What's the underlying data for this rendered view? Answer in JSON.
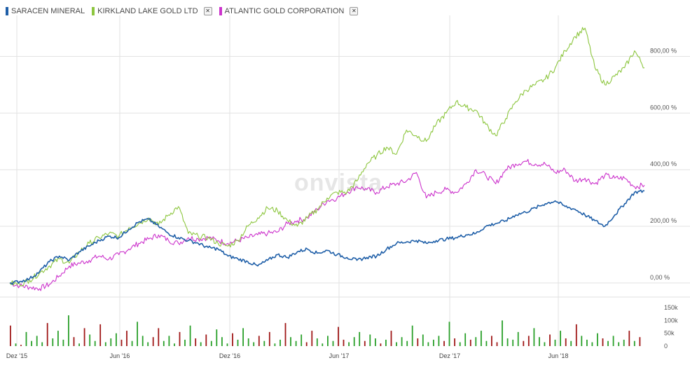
{
  "legend": [
    {
      "name": "SARACEN MINERAL",
      "color": "#1f5fa8",
      "removable": false
    },
    {
      "name": "KIRKLAND LAKE GOLD LTD",
      "color": "#8dc63f",
      "removable": true
    },
    {
      "name": "ATLANTIC GOLD CORPORATION",
      "color": "#cc33cc",
      "removable": true
    }
  ],
  "remove_glyph": "✕",
  "watermark": "onvista",
  "chart_data": [
    {
      "type": "line",
      "x_tick_labels": [
        "Dez '15",
        "Jun '16",
        "Dez '16",
        "Jun '17",
        "Dez '17",
        "Jun '18"
      ],
      "y_tick_labels": [
        "0,00 %",
        "200,00 %",
        "400,00 %",
        "600,00 %",
        "800,00 %"
      ],
      "y_ticks": [
        0,
        200,
        400,
        600,
        800
      ],
      "ylim": [
        -25,
        920
      ],
      "x_range_months": [
        0,
        32
      ],
      "grid": true,
      "legend_position": "top-left",
      "series": [
        {
          "name": "SARACEN MINERAL",
          "color": "#1f5fa8",
          "points": [
            [
              0,
              0
            ],
            [
              0.5,
              5
            ],
            [
              1,
              15
            ],
            [
              1.5,
              40
            ],
            [
              2,
              75
            ],
            [
              2.5,
              95
            ],
            [
              3,
              80
            ],
            [
              3.5,
              110
            ],
            [
              4,
              130
            ],
            [
              4.5,
              150
            ],
            [
              5,
              165
            ],
            [
              5.5,
              160
            ],
            [
              6,
              190
            ],
            [
              6.5,
              215
            ],
            [
              7,
              225
            ],
            [
              7.5,
              200
            ],
            [
              8,
              175
            ],
            [
              8.5,
              160
            ],
            [
              9,
              150
            ],
            [
              9.5,
              140
            ],
            [
              10,
              125
            ],
            [
              10.5,
              120
            ],
            [
              11,
              95
            ],
            [
              11.5,
              85
            ],
            [
              12,
              75
            ],
            [
              12.5,
              60
            ],
            [
              13,
              80
            ],
            [
              13.5,
              100
            ],
            [
              14,
              90
            ],
            [
              14.5,
              110
            ],
            [
              15,
              120
            ],
            [
              15.5,
              105
            ],
            [
              16,
              115
            ],
            [
              16.5,
              100
            ],
            [
              17,
              90
            ],
            [
              17.5,
              80
            ],
            [
              18,
              90
            ],
            [
              18.5,
              95
            ],
            [
              19,
              120
            ],
            [
              19.5,
              140
            ],
            [
              20,
              145
            ],
            [
              20.5,
              150
            ],
            [
              21,
              140
            ],
            [
              21.5,
              150
            ],
            [
              22,
              155
            ],
            [
              22.5,
              160
            ],
            [
              23,
              170
            ],
            [
              23.5,
              175
            ],
            [
              24,
              200
            ],
            [
              24.5,
              210
            ],
            [
              25,
              220
            ],
            [
              25.5,
              240
            ],
            [
              26,
              250
            ],
            [
              26.5,
              265
            ],
            [
              27,
              280
            ],
            [
              27.5,
              290
            ],
            [
              28,
              270
            ],
            [
              28.5,
              260
            ],
            [
              29,
              240
            ],
            [
              29.5,
              220
            ],
            [
              30,
              200
            ],
            [
              30.5,
              240
            ],
            [
              31,
              280
            ],
            [
              31.5,
              320
            ],
            [
              32,
              325
            ]
          ]
        },
        {
          "name": "KIRKLAND LAKE GOLD LTD",
          "color": "#8dc63f",
          "points": [
            [
              0,
              0
            ],
            [
              0.5,
              -5
            ],
            [
              1,
              10
            ],
            [
              1.5,
              35
            ],
            [
              2,
              60
            ],
            [
              2.5,
              85
            ],
            [
              3,
              70
            ],
            [
              3.5,
              110
            ],
            [
              4,
              140
            ],
            [
              4.5,
              160
            ],
            [
              5,
              175
            ],
            [
              5.5,
              165
            ],
            [
              6,
              195
            ],
            [
              6.5,
              210
            ],
            [
              7,
              230
            ],
            [
              7.5,
              205
            ],
            [
              8,
              240
            ],
            [
              8.5,
              270
            ],
            [
              9,
              175
            ],
            [
              9.5,
              165
            ],
            [
              10,
              160
            ],
            [
              10.5,
              140
            ],
            [
              11,
              130
            ],
            [
              11.5,
              150
            ],
            [
              12,
              200
            ],
            [
              12.5,
              230
            ],
            [
              13,
              265
            ],
            [
              13.5,
              255
            ],
            [
              14,
              220
            ],
            [
              14.5,
              200
            ],
            [
              15,
              230
            ],
            [
              15.5,
              260
            ],
            [
              16,
              300
            ],
            [
              16.5,
              320
            ],
            [
              17,
              320
            ],
            [
              17.5,
              360
            ],
            [
              18,
              420
            ],
            [
              18.5,
              450
            ],
            [
              19,
              480
            ],
            [
              19.5,
              455
            ],
            [
              20,
              540
            ],
            [
              20.5,
              520
            ],
            [
              21,
              500
            ],
            [
              21.5,
              560
            ],
            [
              22,
              600
            ],
            [
              22.5,
              640
            ],
            [
              23,
              620
            ],
            [
              23.5,
              610
            ],
            [
              24,
              560
            ],
            [
              24.5,
              520
            ],
            [
              25,
              580
            ],
            [
              25.5,
              640
            ],
            [
              26,
              680
            ],
            [
              26.5,
              700
            ],
            [
              27,
              720
            ],
            [
              27.5,
              760
            ],
            [
              28,
              820
            ],
            [
              28.5,
              870
            ],
            [
              29,
              900
            ],
            [
              29.5,
              760
            ],
            [
              30,
              700
            ],
            [
              30.5,
              730
            ],
            [
              31,
              760
            ],
            [
              31.5,
              820
            ],
            [
              32,
              760
            ]
          ]
        },
        {
          "name": "ATLANTIC GOLD CORPORATION",
          "color": "#cc33cc",
          "points": [
            [
              0,
              0
            ],
            [
              0.5,
              -10
            ],
            [
              1,
              -15
            ],
            [
              1.5,
              -20
            ],
            [
              2,
              -5
            ],
            [
              2.5,
              25
            ],
            [
              3,
              60
            ],
            [
              3.5,
              70
            ],
            [
              4,
              80
            ],
            [
              4.5,
              95
            ],
            [
              5,
              85
            ],
            [
              5.5,
              100
            ],
            [
              6,
              120
            ],
            [
              6.5,
              140
            ],
            [
              7,
              155
            ],
            [
              7.5,
              170
            ],
            [
              8,
              150
            ],
            [
              8.5,
              140
            ],
            [
              9,
              160
            ],
            [
              9.5,
              155
            ],
            [
              10,
              160
            ],
            [
              10.5,
              150
            ],
            [
              11,
              140
            ],
            [
              11.5,
              150
            ],
            [
              12,
              160
            ],
            [
              12.5,
              170
            ],
            [
              13,
              175
            ],
            [
              13.5,
              180
            ],
            [
              14,
              210
            ],
            [
              14.5,
              220
            ],
            [
              15,
              230
            ],
            [
              15.5,
              260
            ],
            [
              16,
              290
            ],
            [
              16.5,
              300
            ],
            [
              17,
              320
            ],
            [
              17.5,
              340
            ],
            [
              18,
              330
            ],
            [
              18.5,
              320
            ],
            [
              19,
              340
            ],
            [
              19.5,
              350
            ],
            [
              20,
              360
            ],
            [
              20.5,
              390
            ],
            [
              21,
              300
            ],
            [
              21.5,
              320
            ],
            [
              22,
              330
            ],
            [
              22.5,
              320
            ],
            [
              23,
              350
            ],
            [
              23.5,
              400
            ],
            [
              24,
              380
            ],
            [
              24.5,
              350
            ],
            [
              25,
              400
            ],
            [
              25.5,
              420
            ],
            [
              26,
              430
            ],
            [
              26.5,
              420
            ],
            [
              27,
              420
            ],
            [
              27.5,
              390
            ],
            [
              28,
              400
            ],
            [
              28.5,
              360
            ],
            [
              29,
              370
            ],
            [
              29.5,
              350
            ],
            [
              30,
              380
            ],
            [
              30.5,
              370
            ],
            [
              31,
              370
            ],
            [
              31.5,
              340
            ],
            [
              32,
              345
            ]
          ]
        }
      ],
      "volume": {
        "y_tick_labels": [
          "150k",
          "100k",
          "50k",
          "0"
        ],
        "y_ticks": [
          150,
          100,
          50,
          0
        ],
        "ylim": [
          0,
          175
        ],
        "up_color": "#2aa02a",
        "down_color": "#a01818",
        "values_k": [
          80,
          10,
          5,
          55,
          20,
          40,
          15,
          90,
          30,
          60,
          25,
          120,
          35,
          10,
          70,
          45,
          20,
          85,
          15,
          30,
          50,
          25,
          60,
          20,
          95,
          40,
          15,
          35,
          70,
          20,
          40,
          10,
          55,
          25,
          80,
          30,
          15,
          45,
          20,
          65,
          35,
          10,
          50,
          25,
          70,
          30,
          15,
          40,
          20,
          55,
          10,
          25,
          90,
          35,
          20,
          45,
          15,
          60,
          30,
          10,
          40,
          20,
          75,
          25,
          15,
          35,
          55,
          20,
          45,
          30,
          10,
          25,
          60,
          15,
          35,
          20,
          80,
          30,
          45,
          15,
          25,
          40,
          20,
          95,
          30,
          15,
          50,
          25,
          35,
          60,
          20,
          40,
          15,
          100,
          30,
          25,
          55,
          20,
          40,
          70,
          35,
          15,
          45,
          25,
          60,
          30,
          20,
          85,
          40,
          25,
          15,
          50,
          30,
          20,
          40,
          15,
          25,
          60,
          20,
          35
        ]
      }
    }
  ]
}
